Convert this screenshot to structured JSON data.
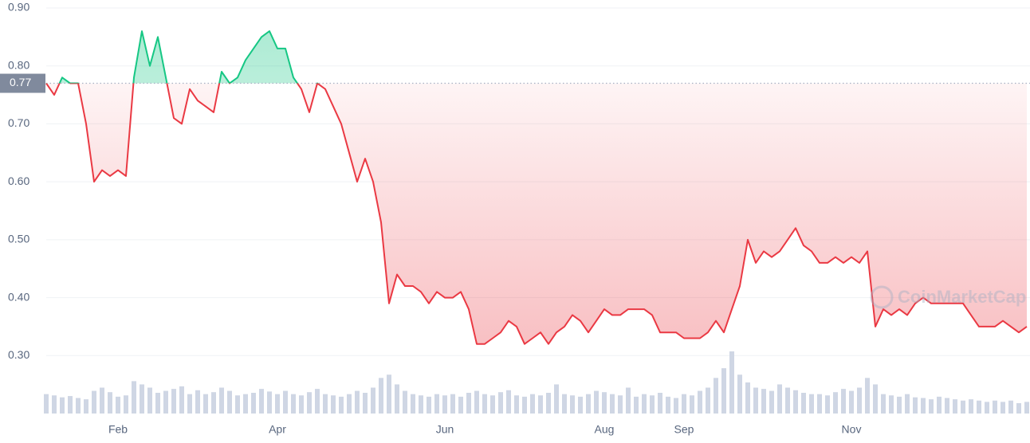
{
  "chart_data": {
    "type": "line",
    "color_up": "#16c784",
    "color_down": "#ea3943",
    "volume_color": "#cfd6e4",
    "reference": 0.77,
    "watermark": "CoinMarketCap",
    "ylim": [
      0.2,
      0.9
    ],
    "yticks": [
      {
        "value": 0.3,
        "label": "0.30"
      },
      {
        "value": 0.4,
        "label": "0.40"
      },
      {
        "value": 0.5,
        "label": "0.50"
      },
      {
        "value": 0.6,
        "label": "0.60"
      },
      {
        "value": 0.7,
        "label": "0.70"
      },
      {
        "value": 0.8,
        "label": "0.80"
      },
      {
        "value": 0.9,
        "label": "0.90"
      }
    ],
    "grid": true,
    "categories": [
      null,
      null,
      null,
      null,
      null,
      null,
      null,
      null,
      null,
      "Feb",
      null,
      null,
      null,
      null,
      null,
      null,
      null,
      null,
      null,
      null,
      null,
      null,
      null,
      null,
      null,
      null,
      null,
      null,
      null,
      "Apr",
      null,
      null,
      null,
      null,
      null,
      null,
      null,
      null,
      null,
      null,
      null,
      null,
      null,
      null,
      null,
      null,
      null,
      null,
      null,
      null,
      "Jun",
      null,
      null,
      null,
      null,
      null,
      null,
      null,
      null,
      null,
      null,
      null,
      null,
      null,
      null,
      null,
      null,
      null,
      null,
      null,
      "Aug",
      null,
      null,
      null,
      null,
      null,
      null,
      null,
      null,
      null,
      "Sep",
      null,
      null,
      null,
      null,
      null,
      null,
      null,
      null,
      null,
      null,
      null,
      null,
      null,
      null,
      null,
      null,
      null,
      null,
      null,
      null,
      "Nov",
      null,
      null,
      null,
      null,
      null,
      null,
      null,
      null,
      null,
      null,
      null,
      null,
      null,
      null,
      null,
      null,
      null,
      null,
      null,
      null,
      null,
      null
    ],
    "values": [
      0.77,
      0.75,
      0.78,
      0.77,
      0.77,
      0.7,
      0.6,
      0.62,
      0.61,
      0.62,
      0.61,
      0.78,
      0.86,
      0.8,
      0.85,
      0.78,
      0.71,
      0.7,
      0.76,
      0.74,
      0.73,
      0.72,
      0.79,
      0.77,
      0.78,
      0.81,
      0.83,
      0.85,
      0.86,
      0.83,
      0.83,
      0.78,
      0.76,
      0.72,
      0.77,
      0.76,
      0.73,
      0.7,
      0.65,
      0.6,
      0.64,
      0.6,
      0.53,
      0.39,
      0.44,
      0.42,
      0.42,
      0.41,
      0.39,
      0.41,
      0.4,
      0.4,
      0.41,
      0.38,
      0.32,
      0.32,
      0.33,
      0.34,
      0.36,
      0.35,
      0.32,
      0.33,
      0.34,
      0.32,
      0.34,
      0.35,
      0.37,
      0.36,
      0.34,
      0.36,
      0.38,
      0.37,
      0.37,
      0.38,
      0.38,
      0.38,
      0.37,
      0.34,
      0.34,
      0.34,
      0.33,
      0.33,
      0.33,
      0.34,
      0.36,
      0.34,
      0.38,
      0.42,
      0.5,
      0.46,
      0.48,
      0.47,
      0.48,
      0.5,
      0.52,
      0.49,
      0.48,
      0.46,
      0.46,
      0.47,
      0.46,
      0.47,
      0.46,
      0.48,
      0.35,
      0.38,
      0.37,
      0.38,
      0.37,
      0.39,
      0.4,
      0.39,
      0.39,
      0.39,
      0.39,
      0.39,
      0.37,
      0.35,
      0.35,
      0.35,
      0.36,
      0.35,
      0.34,
      0.35
    ],
    "volume": [
      30,
      28,
      25,
      27,
      24,
      22,
      35,
      40,
      33,
      26,
      28,
      50,
      45,
      40,
      32,
      35,
      38,
      42,
      30,
      36,
      30,
      33,
      40,
      35,
      28,
      30,
      32,
      38,
      34,
      30,
      35,
      30,
      28,
      33,
      38,
      30,
      28,
      26,
      30,
      35,
      32,
      40,
      55,
      60,
      45,
      35,
      30,
      28,
      26,
      30,
      28,
      30,
      26,
      32,
      35,
      30,
      28,
      33,
      36,
      28,
      26,
      30,
      28,
      32,
      45,
      30,
      28,
      26,
      30,
      35,
      33,
      30,
      28,
      40,
      26,
      30,
      28,
      32,
      26,
      24,
      30,
      28,
      35,
      40,
      55,
      70,
      96,
      60,
      48,
      40,
      38,
      35,
      45,
      40,
      36,
      32,
      30,
      30,
      28,
      33,
      38,
      35,
      40,
      55,
      45,
      30,
      28,
      26,
      30,
      25,
      24,
      22,
      26,
      24,
      22,
      20,
      22,
      20,
      18,
      20,
      18,
      20,
      16,
      18
    ]
  }
}
